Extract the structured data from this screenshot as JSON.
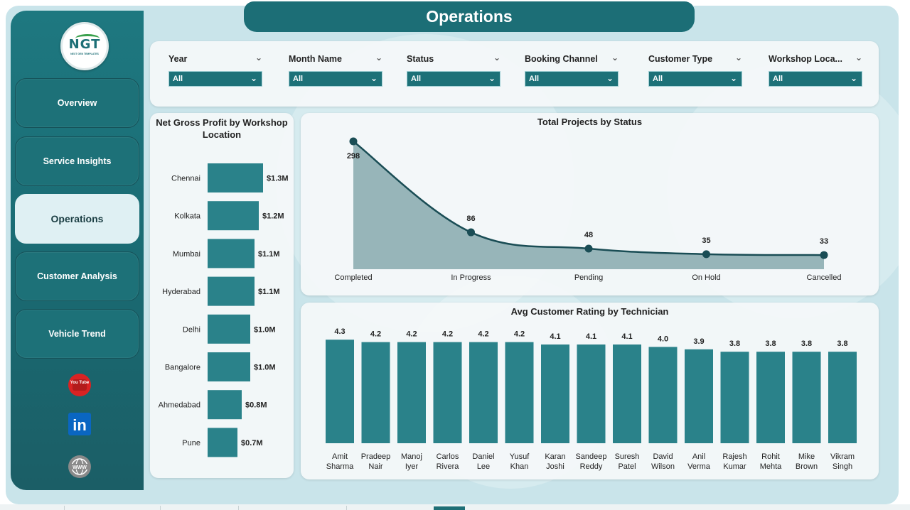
{
  "app": {
    "title": "Operations",
    "logo_text": "NGT",
    "logo_subtext": "NEXT GEN TEMPLATES"
  },
  "colors": {
    "primary": "#1d7178",
    "bar": "#2a828a",
    "area": "#97b5b9",
    "line": "#1a4d55",
    "sidebar": "#1b6a72",
    "active_nav": "#dff0f3"
  },
  "sidebar": {
    "items": [
      {
        "label": "Overview",
        "active": false
      },
      {
        "label": "Service Insights",
        "active": false
      },
      {
        "label": "Operations",
        "active": true
      },
      {
        "label": "Customer Analysis",
        "active": false
      },
      {
        "label": "Vehicle Trend",
        "active": false
      }
    ],
    "social": [
      {
        "name": "youtube-icon",
        "text": "You Tube"
      },
      {
        "name": "linkedin-icon",
        "text": "in"
      },
      {
        "name": "globe-icon",
        "text": "WWW"
      }
    ]
  },
  "filters": [
    {
      "label": "Year",
      "value": "All"
    },
    {
      "label": "Month Name",
      "value": "All"
    },
    {
      "label": "Status",
      "value": "All"
    },
    {
      "label": "Booking Channel",
      "value": "All"
    },
    {
      "label": "Customer Type",
      "value": "All"
    },
    {
      "label": "Workshop Loca...",
      "value": "All"
    }
  ],
  "chart_data": [
    {
      "type": "bar",
      "orientation": "horizontal",
      "title": "Net Gross Profit by Workshop Location",
      "categories": [
        "Chennai",
        "Kolkata",
        "Mumbai",
        "Hyderabad",
        "Delhi",
        "Bangalore",
        "Ahmedabad",
        "Pune"
      ],
      "values": [
        1.3,
        1.2,
        1.1,
        1.1,
        1.0,
        1.0,
        0.8,
        0.7
      ],
      "labels": [
        "$1.3M",
        "$1.2M",
        "$1.1M",
        "$1.1M",
        "$1.0M",
        "$1.0M",
        "$0.8M",
        "$0.7M"
      ]
    },
    {
      "type": "area",
      "title": "Total Projects by Status",
      "categories": [
        "Completed",
        "In Progress",
        "Pending",
        "On Hold",
        "Cancelled"
      ],
      "values": [
        298,
        86,
        48,
        35,
        33
      ]
    },
    {
      "type": "bar",
      "title": "Avg Customer Rating by Technician",
      "categories": [
        "Amit Sharma",
        "Pradeep Nair",
        "Manoj Iyer",
        "Carlos Rivera",
        "Daniel Lee",
        "Yusuf Khan",
        "Karan Joshi",
        "Sandeep Reddy",
        "Suresh Patel",
        "David Wilson",
        "Anil Verma",
        "Rajesh Kumar",
        "Rohit Mehta",
        "Mike Brown",
        "Vikram Singh"
      ],
      "values": [
        4.3,
        4.2,
        4.2,
        4.2,
        4.2,
        4.2,
        4.1,
        4.1,
        4.1,
        4.0,
        3.9,
        3.8,
        3.8,
        3.8,
        3.8
      ],
      "labels": [
        "4.3",
        "4.2",
        "4.2",
        "4.2",
        "4.2",
        "4.2",
        "4.1",
        "4.1",
        "4.1",
        "4.0",
        "3.9",
        "3.8",
        "3.8",
        "3.8",
        "3.8"
      ]
    }
  ]
}
